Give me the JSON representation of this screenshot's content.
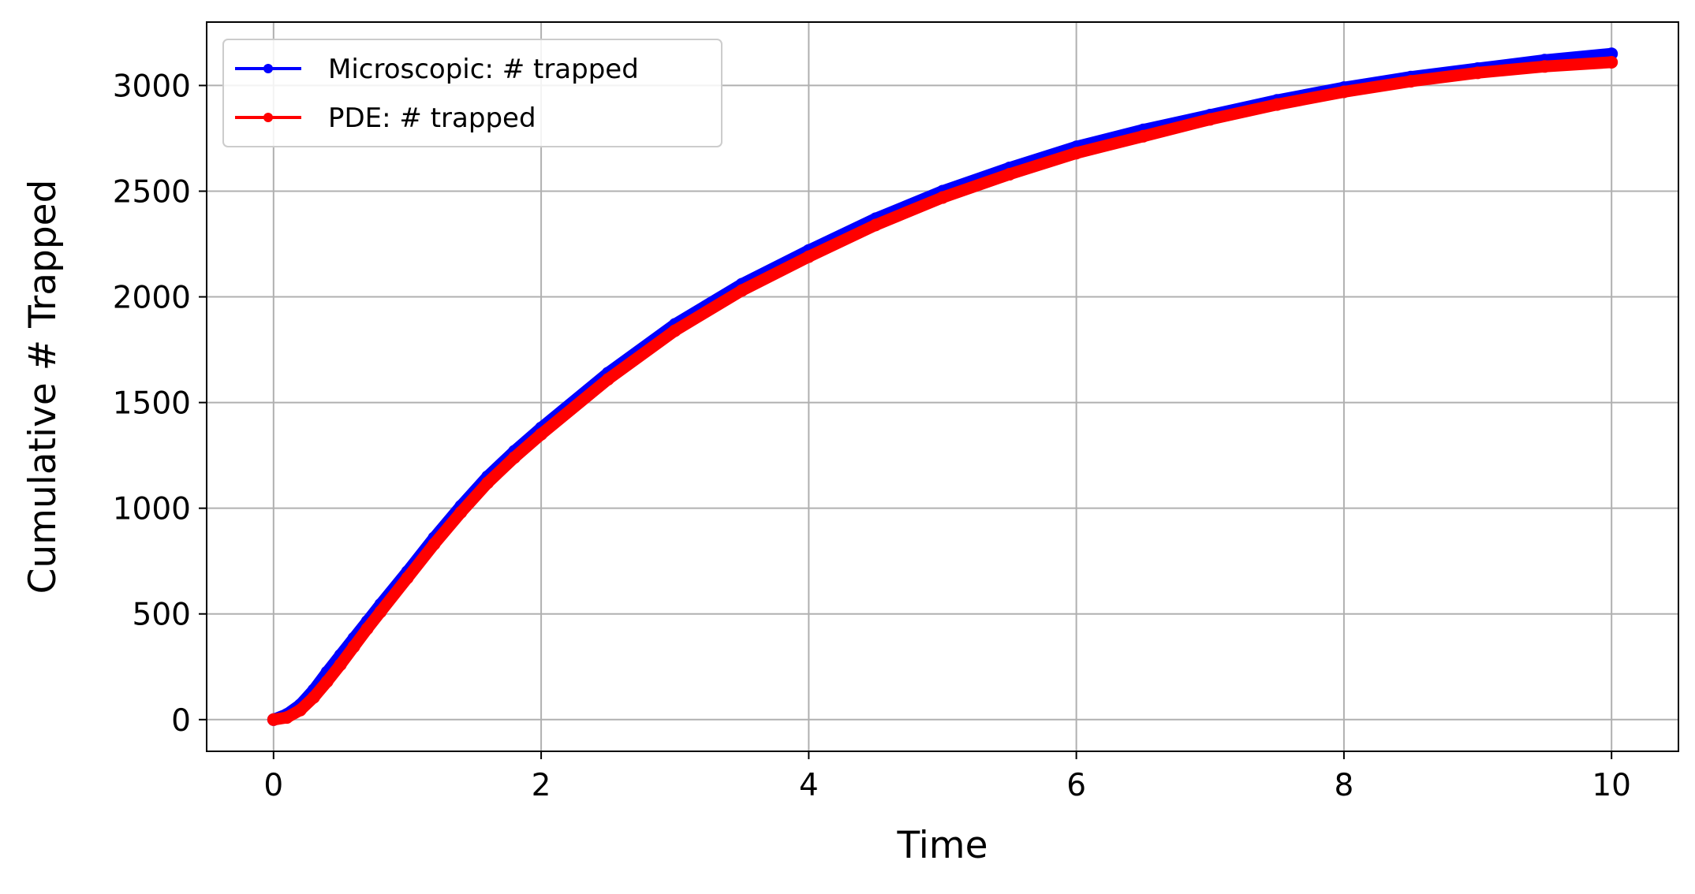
{
  "chart_data": {
    "type": "line",
    "title": "",
    "xlabel": "Time",
    "ylabel": "Cumulative # Trapped",
    "xlim": [
      -0.5,
      10.5
    ],
    "ylim": [
      -150,
      3300
    ],
    "xticks": [
      0,
      2,
      4,
      6,
      8,
      10
    ],
    "yticks": [
      0,
      500,
      1000,
      1500,
      2000,
      2500,
      3000
    ],
    "grid": true,
    "legend_position": "top-left",
    "series": [
      {
        "name": "Microscopic: # trapped",
        "color": "#0000ff",
        "marker": "dot",
        "x": [
          0,
          0.1,
          0.2,
          0.3,
          0.4,
          0.5,
          0.6,
          0.7,
          0.8,
          1.0,
          1.2,
          1.4,
          1.6,
          1.8,
          2.0,
          2.5,
          3.0,
          3.5,
          4.0,
          4.5,
          5.0,
          5.5,
          6.0,
          6.5,
          7.0,
          7.5,
          8.0,
          8.5,
          9.0,
          9.5,
          10.0
        ],
        "y": [
          0,
          25,
          70,
          140,
          225,
          305,
          385,
          465,
          545,
          700,
          860,
          1010,
          1150,
          1270,
          1380,
          1640,
          1870,
          2060,
          2220,
          2370,
          2500,
          2610,
          2710,
          2790,
          2860,
          2930,
          2990,
          3040,
          3080,
          3120,
          3150
        ]
      },
      {
        "name": "PDE: # trapped",
        "color": "#ff0000",
        "marker": "dot",
        "x": [
          0,
          0.1,
          0.2,
          0.3,
          0.4,
          0.5,
          0.6,
          0.7,
          0.8,
          1.0,
          1.2,
          1.4,
          1.6,
          1.8,
          2.0,
          2.5,
          3.0,
          3.5,
          4.0,
          4.5,
          5.0,
          5.5,
          6.0,
          6.5,
          7.0,
          7.5,
          8.0,
          8.5,
          9.0,
          9.5,
          10.0
        ],
        "y": [
          0,
          10,
          45,
          105,
          180,
          260,
          345,
          430,
          510,
          670,
          830,
          980,
          1120,
          1240,
          1350,
          1610,
          1840,
          2030,
          2190,
          2340,
          2470,
          2580,
          2680,
          2760,
          2840,
          2910,
          2970,
          3020,
          3060,
          3090,
          3110
        ]
      }
    ]
  }
}
